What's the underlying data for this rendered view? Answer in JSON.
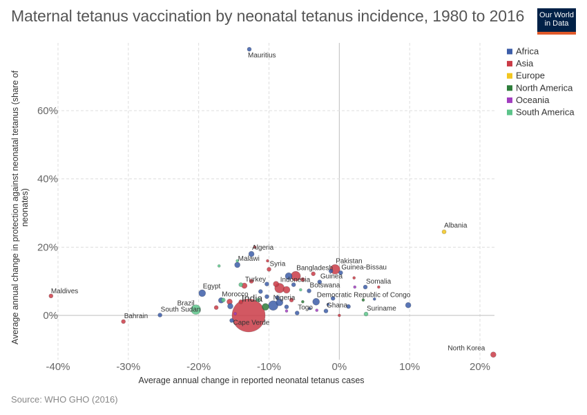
{
  "header": {
    "title": "Maternal tetanus vaccination by neonatal tetanus incidence, 1980 to 2016",
    "logo_line1": "Our World",
    "logo_line2": "in Data"
  },
  "footer": {
    "source": "Source: WHO GHO (2016)"
  },
  "chart_data": {
    "type": "scatter",
    "xlabel": "Average annual change in reported neonatal tetanus cases",
    "ylabel": "Average annual change in protection against neonatal tetanus (share of neonates)",
    "xlim": [
      -41,
      22
    ],
    "ylim": [
      -12,
      78
    ],
    "x_ticks": [
      -40,
      -30,
      -20,
      -10,
      0,
      10,
      20
    ],
    "x_tick_labels": [
      "-40%",
      "-30%",
      "-20%",
      "-10%",
      "0%",
      "10%",
      "20%"
    ],
    "y_ticks": [
      0,
      20,
      40,
      60
    ],
    "y_tick_labels": [
      "0%",
      "20%",
      "40%",
      "60%"
    ],
    "grid": true,
    "legend_position": "top-right",
    "legend": [
      {
        "name": "Africa",
        "color": "#3c5da8"
      },
      {
        "name": "Asia",
        "color": "#ca3b47"
      },
      {
        "name": "Europe",
        "color": "#f2c61f"
      },
      {
        "name": "North America",
        "color": "#2d7d3a"
      },
      {
        "name": "Oceania",
        "color": "#a13dbf"
      },
      {
        "name": "South America",
        "color": "#5cc48a"
      }
    ],
    "points": [
      {
        "label": "Mauritius",
        "x": -12.8,
        "y": 78,
        "region": "Africa",
        "size": 3
      },
      {
        "label": "Albania",
        "x": 14.9,
        "y": 24.5,
        "region": "Europe",
        "size": 3
      },
      {
        "label": "Algeria",
        "x": -12.5,
        "y": 18,
        "region": "Africa",
        "size": 4
      },
      {
        "label": "Malawi",
        "x": -14.5,
        "y": 14.8,
        "region": "Africa",
        "size": 4
      },
      {
        "label": "Syria",
        "x": -10,
        "y": 13.5,
        "region": "Asia",
        "size": 3
      },
      {
        "label": "Pakistan",
        "x": -0.6,
        "y": 13.5,
        "region": "Asia",
        "size": 7
      },
      {
        "label": "Guinea-Bissau",
        "x": 0.2,
        "y": 12.5,
        "region": "Africa",
        "size": 3
      },
      {
        "label": "Bangladesh",
        "x": -6.2,
        "y": 11.5,
        "region": "Asia",
        "size": 7
      },
      {
        "label": "Guinea",
        "x": -2.8,
        "y": 9.8,
        "region": "Africa",
        "size": 3
      },
      {
        "label": "Somalia",
        "x": 3.7,
        "y": 8.3,
        "region": "Africa",
        "size": 3
      },
      {
        "label": "Turkey",
        "x": -13.5,
        "y": 8.7,
        "region": "Asia",
        "size": 4
      },
      {
        "label": "Indonesia",
        "x": -8.5,
        "y": 8,
        "region": "Asia",
        "size": 7
      },
      {
        "label": "Botswana",
        "x": -4.3,
        "y": 7.2,
        "region": "Africa",
        "size": 3
      },
      {
        "label": "Egypt",
        "x": -19.5,
        "y": 6.5,
        "region": "Africa",
        "size": 5
      },
      {
        "label": "Morocco",
        "x": -16.8,
        "y": 4.4,
        "region": "Africa",
        "size": 4
      },
      {
        "label": "India",
        "x": -12.9,
        "y": 0,
        "region": "Asia",
        "size": 24
      },
      {
        "label": "Nigeria",
        "x": -9.4,
        "y": 2.9,
        "region": "Africa",
        "size": 7
      },
      {
        "label": "Democratic Republic of Congo",
        "x": -3.3,
        "y": 4,
        "region": "Africa",
        "size": 5
      },
      {
        "label": "Ghana",
        "x": -1.9,
        "y": 1.3,
        "region": "Africa",
        "size": 3
      },
      {
        "label": "Togo",
        "x": -6,
        "y": 0.7,
        "region": "Africa",
        "size": 3
      },
      {
        "label": "Brazil",
        "x": -20.4,
        "y": 1.7,
        "region": "South America",
        "size": 7
      },
      {
        "label": "South Sudan",
        "x": -25.5,
        "y": 0.1,
        "region": "Africa",
        "size": 3
      },
      {
        "label": "Cape Verde",
        "x": -15.3,
        "y": -1.5,
        "region": "Africa",
        "size": 3
      },
      {
        "label": "Suriname",
        "x": 3.8,
        "y": 0.4,
        "region": "South America",
        "size": 3
      },
      {
        "label": "Maldives",
        "x": -41,
        "y": 5.7,
        "region": "Asia",
        "size": 3
      },
      {
        "label": "Bahrain",
        "x": -30.7,
        "y": -1.8,
        "region": "Asia",
        "size": 3
      },
      {
        "label": "North Korea",
        "x": 21.9,
        "y": -11.5,
        "region": "Asia",
        "size": 4
      },
      {
        "label": "",
        "x": 9.8,
        "y": 3,
        "region": "Africa",
        "size": 4
      },
      {
        "label": "",
        "x": -8.5,
        "y": 3.8,
        "region": "Africa",
        "size": 5
      },
      {
        "label": "",
        "x": -10.5,
        "y": 2.5,
        "region": "North America",
        "size": 5
      },
      {
        "label": "",
        "x": -15.6,
        "y": 4,
        "region": "Asia",
        "size": 4
      },
      {
        "label": "",
        "x": -15.5,
        "y": 2.7,
        "region": "Africa",
        "size": 4
      },
      {
        "label": "",
        "x": -16.5,
        "y": 4.5,
        "region": "South America",
        "size": 3
      },
      {
        "label": "",
        "x": -17.5,
        "y": 2.3,
        "region": "Asia",
        "size": 3
      },
      {
        "label": "",
        "x": -17.1,
        "y": 14.5,
        "region": "South America",
        "size": 2
      },
      {
        "label": "",
        "x": -14.5,
        "y": 16,
        "region": "South America",
        "size": 2
      },
      {
        "label": "",
        "x": -12,
        "y": 20,
        "region": "Asia",
        "size": 2
      },
      {
        "label": "",
        "x": -10.2,
        "y": 16,
        "region": "Asia",
        "size": 2
      },
      {
        "label": "",
        "x": -7.2,
        "y": 11.5,
        "region": "Africa",
        "size": 5
      },
      {
        "label": "",
        "x": -5.2,
        "y": 10.5,
        "region": "Asia",
        "size": 3
      },
      {
        "label": "",
        "x": -3.7,
        "y": 12.2,
        "region": "Asia",
        "size": 3
      },
      {
        "label": "",
        "x": -1.2,
        "y": 13,
        "region": "Africa",
        "size": 3
      },
      {
        "label": "",
        "x": 2.1,
        "y": 11,
        "region": "Asia",
        "size": 2
      },
      {
        "label": "",
        "x": -14,
        "y": 9,
        "region": "South America",
        "size": 3
      },
      {
        "label": "",
        "x": -12.5,
        "y": 10,
        "region": "Asia",
        "size": 3
      },
      {
        "label": "",
        "x": -11.2,
        "y": 7,
        "region": "Africa",
        "size": 3
      },
      {
        "label": "",
        "x": -10.3,
        "y": 9.2,
        "region": "Africa",
        "size": 3
      },
      {
        "label": "",
        "x": -9,
        "y": 9.2,
        "region": "Asia",
        "size": 4
      },
      {
        "label": "",
        "x": -7.5,
        "y": 7.5,
        "region": "Asia",
        "size": 5
      },
      {
        "label": "",
        "x": -6.5,
        "y": 9,
        "region": "Africa",
        "size": 3
      },
      {
        "label": "",
        "x": -5.5,
        "y": 7.5,
        "region": "South America",
        "size": 2
      },
      {
        "label": "",
        "x": -5.2,
        "y": 4,
        "region": "North America",
        "size": 2
      },
      {
        "label": "",
        "x": -6.8,
        "y": 4.5,
        "region": "Asia",
        "size": 3
      },
      {
        "label": "",
        "x": -8.8,
        "y": 5.2,
        "region": "Africa",
        "size": 3
      },
      {
        "label": "",
        "x": -10.3,
        "y": 5.5,
        "region": "Africa",
        "size": 3
      },
      {
        "label": "",
        "x": -11.5,
        "y": 4.5,
        "region": "South America",
        "size": 3
      },
      {
        "label": "",
        "x": -14,
        "y": 4,
        "region": "Asia",
        "size": 3
      },
      {
        "label": "",
        "x": -7.5,
        "y": 2.5,
        "region": "Africa",
        "size": 3
      },
      {
        "label": "",
        "x": -7.5,
        "y": 1.3,
        "region": "Oceania",
        "size": 2
      },
      {
        "label": "",
        "x": -4.2,
        "y": 2,
        "region": "Africa",
        "size": 2
      },
      {
        "label": "",
        "x": -3.2,
        "y": 1.5,
        "region": "Oceania",
        "size": 2
      },
      {
        "label": "",
        "x": -0.9,
        "y": 5,
        "region": "Africa",
        "size": 3
      },
      {
        "label": "",
        "x": -1.6,
        "y": 3.2,
        "region": "Africa",
        "size": 2
      },
      {
        "label": "",
        "x": 1.3,
        "y": 2.6,
        "region": "Africa",
        "size": 3
      },
      {
        "label": "",
        "x": 3.4,
        "y": 4.5,
        "region": "North America",
        "size": 2
      },
      {
        "label": "",
        "x": 5,
        "y": 4.8,
        "region": "Africa",
        "size": 2
      },
      {
        "label": "",
        "x": 5.6,
        "y": 8.3,
        "region": "Asia",
        "size": 2
      },
      {
        "label": "",
        "x": 2.2,
        "y": 8.3,
        "region": "Oceania",
        "size": 2
      },
      {
        "label": "",
        "x": 0,
        "y": 0,
        "region": "Asia",
        "size": 2
      },
      {
        "label": "",
        "x": -14.8,
        "y": 0.5,
        "region": "Oceania",
        "size": 2
      }
    ]
  }
}
